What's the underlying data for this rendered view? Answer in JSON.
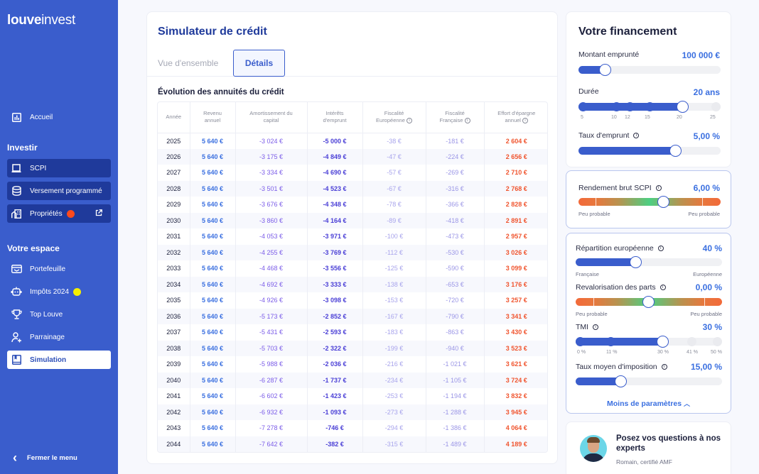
{
  "brand": {
    "logo_bold": "louve",
    "logo_light": "invest"
  },
  "sidebar": {
    "home": {
      "label": "Accueil",
      "icon": "chart-bar-icon"
    },
    "invest_title": "Investir",
    "invest_items": [
      {
        "label": "SCPI",
        "icon": "laptop-icon"
      },
      {
        "label": "Versement programmé",
        "icon": "database-icon"
      },
      {
        "label": "Propriétés",
        "icon": "building-icon",
        "badge_color": "#ff4a1c",
        "external": true
      }
    ],
    "space_title": "Votre espace",
    "space_items": [
      {
        "label": "Portefeuille",
        "icon": "wallet-icon"
      },
      {
        "label": "Impôts 2024",
        "icon": "robot-icon",
        "badge_color": "#f4f000"
      },
      {
        "label": "Top Louve",
        "icon": "trophy-icon"
      },
      {
        "label": "Parrainage",
        "icon": "user-plus-icon"
      },
      {
        "label": "Simulation",
        "icon": "book-icon",
        "active": true
      }
    ],
    "close_menu": "Fermer le menu"
  },
  "main": {
    "title": "Simulateur de crédit",
    "tabs": [
      {
        "label": "Vue d'ensemble",
        "active": false
      },
      {
        "label": "Détails",
        "active": true
      }
    ],
    "table_title": "Évolution des annuités du crédit",
    "columns": [
      {
        "line1": "Année",
        "line2": ""
      },
      {
        "line1": "Revenu",
        "line2": "annuel"
      },
      {
        "line1": "Amortissement du",
        "line2": "capital"
      },
      {
        "line1": "Intérêts",
        "line2": "d'emprunt"
      },
      {
        "line1": "Fiscalité",
        "line2": "Européenne",
        "info": true
      },
      {
        "line1": "Fiscalité",
        "line2": "Française",
        "info": true
      },
      {
        "line1": "Effort d'épargne",
        "line2": "annuel",
        "info": true
      }
    ],
    "rows": [
      [
        "2025",
        "5 640 €",
        "-3 024 €",
        "-5 000 €",
        "-38 €",
        "-181 €",
        "2 604 €"
      ],
      [
        "2026",
        "5 640 €",
        "-3 175 €",
        "-4 849 €",
        "-47 €",
        "-224 €",
        "2 656 €"
      ],
      [
        "2027",
        "5 640 €",
        "-3 334 €",
        "-4 690 €",
        "-57 €",
        "-269 €",
        "2 710 €"
      ],
      [
        "2028",
        "5 640 €",
        "-3 501 €",
        "-4 523 €",
        "-67 €",
        "-316 €",
        "2 768 €"
      ],
      [
        "2029",
        "5 640 €",
        "-3 676 €",
        "-4 348 €",
        "-78 €",
        "-366 €",
        "2 828 €"
      ],
      [
        "2030",
        "5 640 €",
        "-3 860 €",
        "-4 164 €",
        "-89 €",
        "-418 €",
        "2 891 €"
      ],
      [
        "2031",
        "5 640 €",
        "-4 053 €",
        "-3 971 €",
        "-100 €",
        "-473 €",
        "2 957 €"
      ],
      [
        "2032",
        "5 640 €",
        "-4 255 €",
        "-3 769 €",
        "-112 €",
        "-530 €",
        "3 026 €"
      ],
      [
        "2033",
        "5 640 €",
        "-4 468 €",
        "-3 556 €",
        "-125 €",
        "-590 €",
        "3 099 €"
      ],
      [
        "2034",
        "5 640 €",
        "-4 692 €",
        "-3 333 €",
        "-138 €",
        "-653 €",
        "3 176 €"
      ],
      [
        "2035",
        "5 640 €",
        "-4 926 €",
        "-3 098 €",
        "-153 €",
        "-720 €",
        "3 257 €"
      ],
      [
        "2036",
        "5 640 €",
        "-5 173 €",
        "-2 852 €",
        "-167 €",
        "-790 €",
        "3 341 €"
      ],
      [
        "2037",
        "5 640 €",
        "-5 431 €",
        "-2 593 €",
        "-183 €",
        "-863 €",
        "3 430 €"
      ],
      [
        "2038",
        "5 640 €",
        "-5 703 €",
        "-2 322 €",
        "-199 €",
        "-940 €",
        "3 523 €"
      ],
      [
        "2039",
        "5 640 €",
        "-5 988 €",
        "-2 036 €",
        "-216 €",
        "-1 021 €",
        "3 621 €"
      ],
      [
        "2040",
        "5 640 €",
        "-6 287 €",
        "-1 737 €",
        "-234 €",
        "-1 105 €",
        "3 724 €"
      ],
      [
        "2041",
        "5 640 €",
        "-6 602 €",
        "-1 423 €",
        "-253 €",
        "-1 194 €",
        "3 832 €"
      ],
      [
        "2042",
        "5 640 €",
        "-6 932 €",
        "-1 093 €",
        "-273 €",
        "-1 288 €",
        "3 945 €"
      ],
      [
        "2043",
        "5 640 €",
        "-7 278 €",
        "-746 €",
        "-294 €",
        "-1 386 €",
        "4 064 €"
      ],
      [
        "2044",
        "5 640 €",
        "-7 642 €",
        "-382 €",
        "-315 €",
        "-1 489 €",
        "4 189 €"
      ]
    ]
  },
  "financing": {
    "title": "Votre financement",
    "amount": {
      "label": "Montant emprunté",
      "value": "100 000 €",
      "percent": 15
    },
    "duration": {
      "label": "Durée",
      "value": "20 ans",
      "ticks": [
        "5",
        "10",
        "12",
        "15",
        "20",
        "25"
      ]
    },
    "rate": {
      "label": "Taux d'emprunt",
      "value": "5,00 %",
      "percent": 68
    }
  },
  "scpi": {
    "label": "Rendement brut SCPI",
    "value": "6,00 %",
    "left_label": "Peu probable",
    "right_label": "Peu probable"
  },
  "params": {
    "repartition": {
      "label": "Répartition européenne",
      "value": "40 %",
      "left_label": "Française",
      "right_label": "Européenne"
    },
    "revalorisation": {
      "label": "Revalorisation des parts",
      "value": "0,00 %",
      "left_label": "Peu probable",
      "right_label": "Peu probable"
    },
    "tmi": {
      "label": "TMI",
      "value": "30 %",
      "ticks": [
        "0 %",
        "11 %",
        "30 %",
        "41 %",
        "50 %"
      ]
    },
    "taux_moyen": {
      "label": "Taux moyen d'imposition",
      "value": "15,00 %"
    },
    "less_label": "Moins de paramètres"
  },
  "expert": {
    "title": "Posez vos questions à nos experts",
    "subtitle": "Romain, certifié AMF"
  },
  "colors": {
    "brand": "#3a5dcc",
    "accent": "#3a6fe0",
    "effort": "#f0542e"
  }
}
